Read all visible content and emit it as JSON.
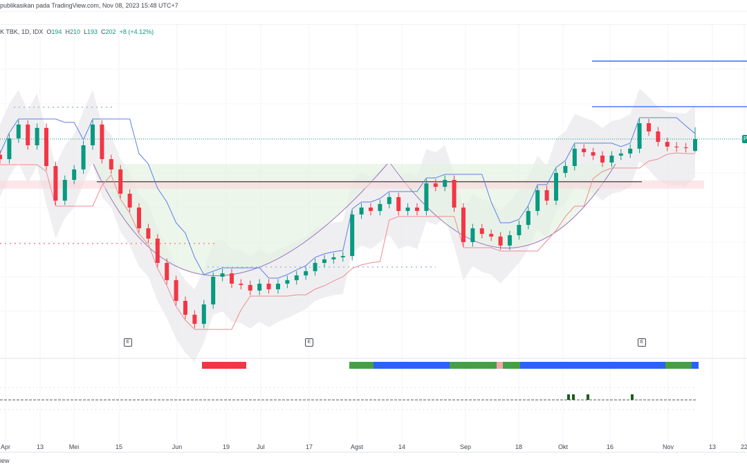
{
  "header": {
    "published": "publikasikan pada TradingView.com, Nov 08, 2023 15:48 UTC+7"
  },
  "legend": {
    "symbol": "K TBK, 1D, IDX",
    "open_label": "O",
    "open": "194",
    "high_label": "H",
    "high": "210",
    "low_label": "L",
    "low": "193",
    "close_label": "C",
    "close": "202",
    "change": "+8 (+4.12%)"
  },
  "price_label": "P",
  "earnings_marker": "E",
  "logo_text": "iew",
  "colors": {
    "up": "#089981",
    "down": "#f23645",
    "blue": "#2962ff",
    "band": "#e9eaec",
    "cup": "#9c6fbf"
  },
  "chart_data": {
    "type": "candlestick",
    "title": "",
    "x_tick_labels": [
      "Apr",
      "13",
      "Mei",
      "15",
      "Jun",
      "19",
      "Jul",
      "17",
      "Agst",
      "14",
      "Sep",
      "18",
      "Okt",
      "16",
      "Nov",
      "13",
      "22"
    ],
    "closes": [
      188.4,
      202.5,
      211.9,
      197.8,
      209.6,
      183.7,
      160.2,
      174.3,
      181.4,
      197.8,
      211.9,
      188.4,
      181.4,
      164.9,
      155.5,
      141.4,
      134.4,
      117.9,
      106.2,
      92.1,
      82.7,
      76.5,
      89.7,
      108.5,
      110.8,
      103.8,
      102.9,
      99.1,
      103.8,
      100.0,
      103.8,
      106.2,
      109.4,
      112.3,
      117.9,
      120.3,
      121.7,
      122.6,
      150.8,
      155.5,
      153.2,
      157.9,
      162.6,
      153.2,
      155.5,
      153.2,
      171.9,
      169.6,
      174.3,
      155.5,
      132.0,
      141.4,
      137.6,
      135.8,
      129.7,
      136.7,
      143.7,
      153.2,
      167.3,
      160.2,
      179.0,
      183.7,
      195.5,
      193.1,
      190.8,
      186.1,
      190.8,
      192.2,
      195.5,
      212.8,
      207.2,
      200.1,
      196.9,
      196.4,
      195.9,
      202.0
    ],
    "last_candle": {
      "open": 194,
      "high": 210,
      "low": 193,
      "close": 202
    },
    "resistance_level": 173.0,
    "target_levels": [
      255.0,
      224.0
    ]
  }
}
